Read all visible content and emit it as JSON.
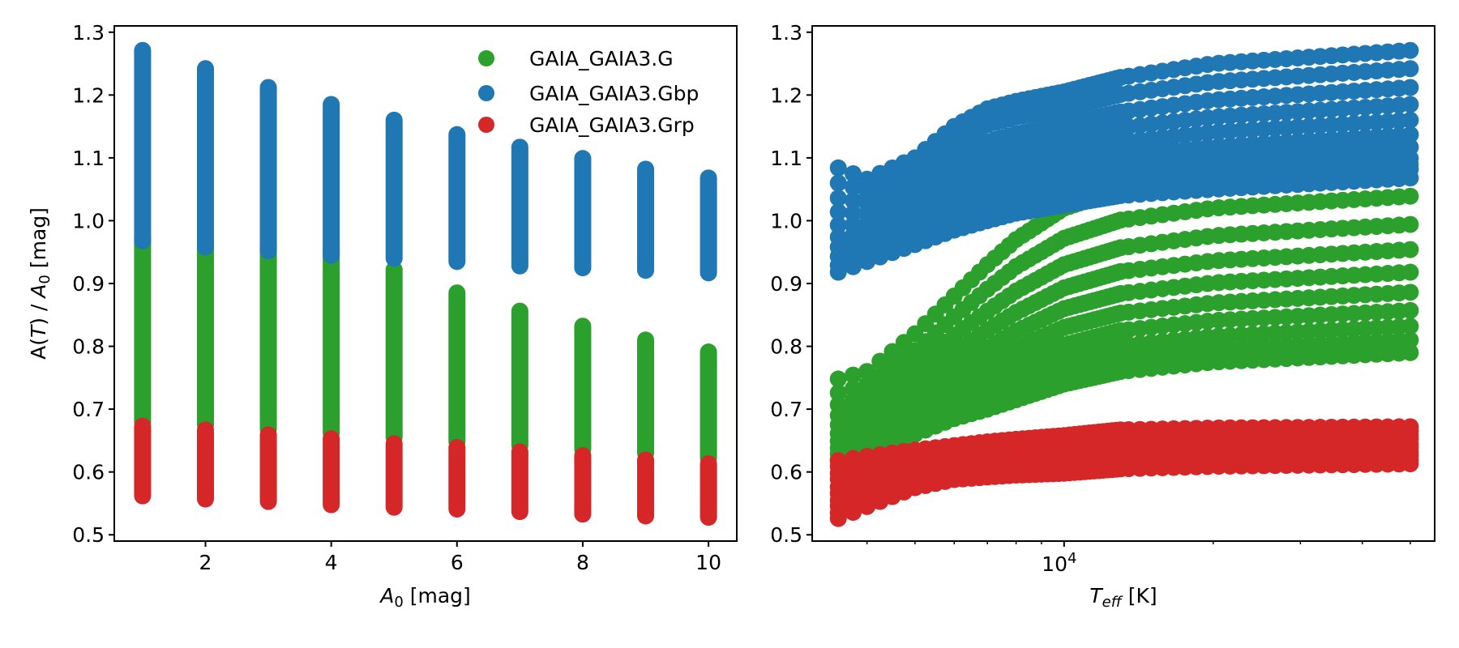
{
  "chart_data": [
    {
      "type": "scatter",
      "panel": "left",
      "title": "",
      "xlabel": "A0 [mag]",
      "xlabel_parts": {
        "main": "A",
        "sub": "0",
        "unit": " [mag]"
      },
      "ylabel": "A(T) / A0 [mag]",
      "ylabel_parts": {
        "pre": "A(",
        "var": "T",
        "mid": ") / ",
        "a": "A",
        "sub": "0",
        "unit": " [mag]"
      },
      "xlim": [
        0.55,
        10.45
      ],
      "ylim": [
        0.49,
        1.31
      ],
      "xticks": [
        2,
        4,
        6,
        8,
        10
      ],
      "xtick_labels": [
        "2",
        "4",
        "6",
        "8",
        "10"
      ],
      "yticks": [
        0.5,
        0.6,
        0.7,
        0.8,
        0.9,
        1.0,
        1.1,
        1.2,
        1.3
      ],
      "ytick_labels": [
        "0.5",
        "0.6",
        "0.7",
        "0.8",
        "0.9",
        "1.0",
        "1.1",
        "1.2",
        "1.3"
      ],
      "grid": false,
      "legend_position": "top-right",
      "x": [
        1,
        2,
        3,
        4,
        5,
        6,
        7,
        8,
        9,
        10
      ],
      "series": [
        {
          "name": "GAIA_GAIA3.G",
          "color": "#2ca02c",
          "min": [
            0.68,
            0.675,
            0.668,
            0.662,
            0.655,
            0.648,
            0.642,
            0.636,
            0.63,
            0.622
          ],
          "max": [
            0.975,
            0.968,
            0.962,
            0.956,
            0.922,
            0.885,
            0.856,
            0.832,
            0.81,
            0.791
          ]
        },
        {
          "name": "GAIA_GAIA3.Gbp",
          "color": "#1f77b4",
          "min": [
            0.968,
            0.958,
            0.952,
            0.945,
            0.94,
            0.935,
            0.928,
            0.925,
            0.921,
            0.917
          ],
          "max": [
            1.271,
            1.242,
            1.212,
            1.185,
            1.16,
            1.137,
            1.117,
            1.099,
            1.082,
            1.068
          ]
        },
        {
          "name": "GAIA_GAIA3.Grp",
          "color": "#d62728",
          "min": [
            0.562,
            0.557,
            0.553,
            0.548,
            0.544,
            0.541,
            0.537,
            0.533,
            0.53,
            0.528
          ],
          "max": [
            0.673,
            0.667,
            0.659,
            0.653,
            0.645,
            0.639,
            0.632,
            0.626,
            0.619,
            0.613
          ]
        }
      ]
    },
    {
      "type": "scatter",
      "panel": "right",
      "title": "",
      "xlabel": "Teff [K]",
      "xlabel_parts": {
        "main": "T",
        "sub": "eff",
        "unit": " [K]"
      },
      "ylabel": "",
      "xscale": "log",
      "xlim": [
        3100,
        56000
      ],
      "ylim": [
        0.49,
        1.31
      ],
      "xticks_major": [
        10000
      ],
      "xtick_major_labels": [
        {
          "base": "10",
          "exp": "4"
        }
      ],
      "xticks_minor": [
        4000,
        5000,
        6000,
        7000,
        8000,
        9000,
        20000,
        30000,
        40000,
        50000
      ],
      "yticks": [
        0.5,
        0.6,
        0.7,
        0.8,
        0.9,
        1.0,
        1.1,
        1.2,
        1.3
      ],
      "ytick_labels": [
        "0.5",
        "0.6",
        "0.7",
        "0.8",
        "0.9",
        "1.0",
        "1.1",
        "1.2",
        "1.3"
      ],
      "grid": false,
      "teff_grid": {
        "dense_start": 3500,
        "dense_stop": 13000,
        "dense_step": 250,
        "sparse_start": 13500,
        "sparse_stop": 50000,
        "sparse_count": 26
      },
      "anchor_teff": [
        3500,
        4000,
        5000,
        6000,
        7000,
        8000,
        10000,
        13000,
        20000,
        50000
      ],
      "A0": [
        1,
        2,
        3,
        4,
        5,
        6,
        7,
        8,
        9,
        10
      ],
      "series": [
        {
          "name": "GAIA_GAIA3.G",
          "color": "#2ca02c",
          "curves": [
            [
              0.748,
              0.76,
              0.82,
              0.88,
              0.93,
              0.97,
              1.02,
              1.05,
              1.07,
              1.09
            ],
            [
              0.726,
              0.739,
              0.793,
              0.847,
              0.891,
              0.927,
              0.972,
              1.001,
              1.02,
              1.039
            ],
            [
              0.707,
              0.72,
              0.769,
              0.818,
              0.856,
              0.888,
              0.93,
              0.957,
              0.976,
              0.994
            ],
            [
              0.69,
              0.703,
              0.748,
              0.792,
              0.826,
              0.854,
              0.893,
              0.919,
              0.936,
              0.954
            ],
            [
              0.675,
              0.688,
              0.728,
              0.768,
              0.798,
              0.824,
              0.86,
              0.884,
              0.901,
              0.918
            ],
            [
              0.661,
              0.675,
              0.711,
              0.747,
              0.774,
              0.797,
              0.83,
              0.853,
              0.869,
              0.886
            ],
            [
              0.649,
              0.663,
              0.696,
              0.728,
              0.751,
              0.772,
              0.802,
              0.825,
              0.841,
              0.857
            ],
            [
              0.638,
              0.653,
              0.682,
              0.712,
              0.732,
              0.751,
              0.779,
              0.801,
              0.816,
              0.832
            ],
            [
              0.629,
              0.643,
              0.671,
              0.698,
              0.715,
              0.732,
              0.759,
              0.779,
              0.795,
              0.81
            ],
            [
              0.62,
              0.635,
              0.66,
              0.685,
              0.7,
              0.715,
              0.74,
              0.76,
              0.775,
              0.79
            ]
          ]
        },
        {
          "name": "GAIA_GAIA3.Gbp",
          "color": "#1f77b4",
          "curves": [
            [
              1.084,
              1.066,
              1.1,
              1.15,
              1.178,
              1.19,
              1.205,
              1.228,
              1.25,
              1.271
            ],
            [
              1.06,
              1.047,
              1.08,
              1.126,
              1.153,
              1.165,
              1.179,
              1.201,
              1.221,
              1.242
            ],
            [
              1.036,
              1.028,
              1.06,
              1.102,
              1.126,
              1.138,
              1.153,
              1.173,
              1.192,
              1.212
            ],
            [
              1.014,
              1.01,
              1.041,
              1.08,
              1.103,
              1.115,
              1.129,
              1.148,
              1.165,
              1.185
            ],
            [
              0.993,
              0.994,
              1.025,
              1.06,
              1.081,
              1.093,
              1.107,
              1.125,
              1.141,
              1.16
            ],
            [
              0.974,
              0.98,
              1.009,
              1.041,
              1.061,
              1.073,
              1.086,
              1.104,
              1.118,
              1.137
            ],
            [
              0.958,
              0.967,
              0.995,
              1.025,
              1.043,
              1.055,
              1.068,
              1.085,
              1.098,
              1.117
            ],
            [
              0.943,
              0.955,
              0.983,
              1.01,
              1.027,
              1.039,
              1.053,
              1.069,
              1.081,
              1.099
            ],
            [
              0.929,
              0.944,
              0.972,
              0.996,
              1.012,
              1.024,
              1.037,
              1.053,
              1.064,
              1.082
            ],
            [
              0.918,
              0.935,
              0.962,
              0.985,
              1.0,
              1.012,
              1.025,
              1.04,
              1.05,
              1.068
            ]
          ]
        },
        {
          "name": "GAIA_GAIA3.Grp",
          "color": "#d62728",
          "curves": [
            [
              0.618,
              0.625,
              0.635,
              0.642,
              0.648,
              0.652,
              0.658,
              0.667,
              0.67,
              0.672
            ],
            [
              0.609,
              0.617,
              0.629,
              0.637,
              0.642,
              0.646,
              0.652,
              0.661,
              0.664,
              0.666
            ],
            [
              0.598,
              0.607,
              0.622,
              0.63,
              0.636,
              0.639,
              0.645,
              0.653,
              0.657,
              0.659
            ],
            [
              0.589,
              0.599,
              0.616,
              0.625,
              0.63,
              0.634,
              0.639,
              0.647,
              0.65,
              0.653
            ],
            [
              0.576,
              0.588,
              0.607,
              0.617,
              0.622,
              0.626,
              0.63,
              0.638,
              0.642,
              0.645
            ],
            [
              0.566,
              0.58,
              0.601,
              0.612,
              0.617,
              0.62,
              0.624,
              0.632,
              0.636,
              0.639
            ],
            [
              0.555,
              0.571,
              0.594,
              0.605,
              0.61,
              0.613,
              0.617,
              0.625,
              0.629,
              0.632
            ],
            [
              0.546,
              0.563,
              0.588,
              0.6,
              0.604,
              0.608,
              0.611,
              0.619,
              0.622,
              0.626
            ],
            [
              0.535,
              0.553,
              0.581,
              0.593,
              0.598,
              0.601,
              0.604,
              0.611,
              0.615,
              0.619
            ],
            [
              0.526,
              0.545,
              0.575,
              0.588,
              0.592,
              0.595,
              0.598,
              0.605,
              0.609,
              0.613
            ]
          ]
        }
      ]
    }
  ],
  "legend": {
    "items": [
      {
        "label": "GAIA_GAIA3.G",
        "color": "#2ca02c"
      },
      {
        "label": "GAIA_GAIA3.Gbp",
        "color": "#1f77b4"
      },
      {
        "label": "GAIA_GAIA3.Grp",
        "color": "#d62728"
      }
    ]
  }
}
